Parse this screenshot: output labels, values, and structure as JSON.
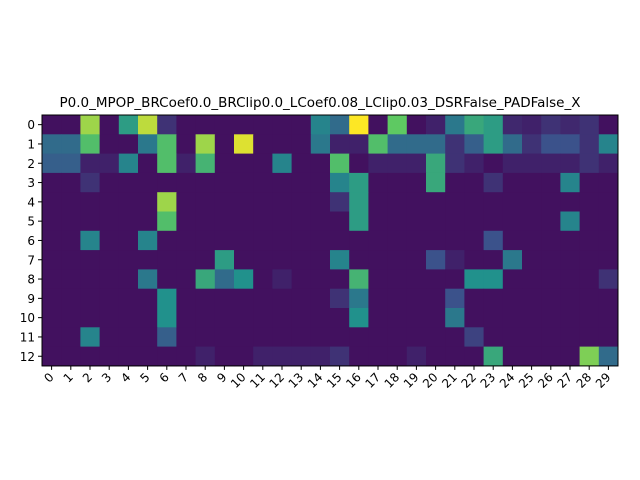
{
  "chart_data": {
    "type": "heatmap",
    "title": "P0.0_MPOP_BRCoef0.0_BRClip0.0_LCoef0.08_LClip0.03_DSRFalse_PADFalse_X",
    "colormap": "viridis",
    "vmin": 0,
    "vmax": 1,
    "x_ticks": [
      "0",
      "1",
      "2",
      "3",
      "4",
      "5",
      "6",
      "7",
      "8",
      "9",
      "10",
      "11",
      "12",
      "13",
      "14",
      "15",
      "16",
      "17",
      "18",
      "19",
      "20",
      "21",
      "22",
      "23",
      "24",
      "25",
      "26",
      "27",
      "28",
      "29"
    ],
    "y_ticks": [
      "0",
      "1",
      "2",
      "3",
      "4",
      "5",
      "6",
      "7",
      "8",
      "9",
      "10",
      "11",
      "12"
    ],
    "values": [
      [
        0.05,
        0.05,
        0.85,
        0.05,
        0.55,
        0.9,
        0.15,
        0.05,
        0.05,
        0.05,
        0.05,
        0.05,
        0.05,
        0.05,
        0.45,
        0.35,
        1.0,
        0.05,
        0.75,
        0.05,
        0.1,
        0.4,
        0.6,
        0.55,
        0.12,
        0.1,
        0.15,
        0.12,
        0.15,
        0.05
      ],
      [
        0.35,
        0.35,
        0.7,
        0.05,
        0.05,
        0.4,
        0.7,
        0.05,
        0.85,
        0.05,
        0.95,
        0.05,
        0.05,
        0.05,
        0.4,
        0.1,
        0.1,
        0.7,
        0.35,
        0.35,
        0.35,
        0.15,
        0.3,
        0.55,
        0.35,
        0.15,
        0.25,
        0.25,
        0.15,
        0.45
      ],
      [
        0.3,
        0.3,
        0.1,
        0.1,
        0.45,
        0.05,
        0.7,
        0.1,
        0.65,
        0.05,
        0.05,
        0.05,
        0.45,
        0.05,
        0.05,
        0.7,
        0.05,
        0.1,
        0.1,
        0.1,
        0.6,
        0.15,
        0.1,
        0.05,
        0.1,
        0.1,
        0.1,
        0.1,
        0.15,
        0.1
      ],
      [
        0.05,
        0.05,
        0.15,
        0.05,
        0.05,
        0.05,
        0.05,
        0.05,
        0.05,
        0.05,
        0.05,
        0.05,
        0.05,
        0.05,
        0.05,
        0.45,
        0.55,
        0.05,
        0.05,
        0.05,
        0.6,
        0.05,
        0.05,
        0.15,
        0.05,
        0.05,
        0.05,
        0.45,
        0.05,
        0.05
      ],
      [
        0.05,
        0.05,
        0.05,
        0.05,
        0.05,
        0.05,
        0.85,
        0.05,
        0.05,
        0.05,
        0.05,
        0.05,
        0.05,
        0.05,
        0.05,
        0.15,
        0.55,
        0.05,
        0.05,
        0.05,
        0.05,
        0.05,
        0.05,
        0.05,
        0.05,
        0.05,
        0.05,
        0.05,
        0.05,
        0.05
      ],
      [
        0.05,
        0.05,
        0.05,
        0.05,
        0.05,
        0.05,
        0.7,
        0.05,
        0.05,
        0.05,
        0.05,
        0.05,
        0.05,
        0.05,
        0.05,
        0.05,
        0.55,
        0.05,
        0.05,
        0.05,
        0.05,
        0.05,
        0.05,
        0.05,
        0.05,
        0.05,
        0.05,
        0.45,
        0.05,
        0.05
      ],
      [
        0.05,
        0.05,
        0.45,
        0.05,
        0.05,
        0.45,
        0.05,
        0.05,
        0.05,
        0.05,
        0.05,
        0.05,
        0.05,
        0.05,
        0.05,
        0.05,
        0.05,
        0.05,
        0.05,
        0.05,
        0.05,
        0.05,
        0.05,
        0.25,
        0.05,
        0.05,
        0.05,
        0.05,
        0.05,
        0.05
      ],
      [
        0.05,
        0.05,
        0.05,
        0.05,
        0.05,
        0.05,
        0.05,
        0.05,
        0.05,
        0.55,
        0.05,
        0.05,
        0.05,
        0.05,
        0.05,
        0.45,
        0.05,
        0.05,
        0.05,
        0.05,
        0.25,
        0.1,
        0.05,
        0.05,
        0.4,
        0.05,
        0.05,
        0.05,
        0.05,
        0.05
      ],
      [
        0.05,
        0.05,
        0.05,
        0.05,
        0.05,
        0.4,
        0.05,
        0.05,
        0.6,
        0.35,
        0.5,
        0.05,
        0.1,
        0.05,
        0.05,
        0.05,
        0.65,
        0.05,
        0.05,
        0.05,
        0.05,
        0.05,
        0.5,
        0.5,
        0.05,
        0.05,
        0.05,
        0.05,
        0.05,
        0.15
      ],
      [
        0.05,
        0.05,
        0.05,
        0.05,
        0.05,
        0.05,
        0.5,
        0.05,
        0.05,
        0.05,
        0.05,
        0.05,
        0.05,
        0.05,
        0.05,
        0.15,
        0.4,
        0.05,
        0.05,
        0.05,
        0.05,
        0.25,
        0.05,
        0.05,
        0.05,
        0.05,
        0.05,
        0.05,
        0.05,
        0.05
      ],
      [
        0.05,
        0.05,
        0.05,
        0.05,
        0.05,
        0.05,
        0.5,
        0.05,
        0.05,
        0.05,
        0.05,
        0.05,
        0.05,
        0.05,
        0.05,
        0.05,
        0.5,
        0.05,
        0.05,
        0.05,
        0.05,
        0.4,
        0.05,
        0.05,
        0.05,
        0.05,
        0.05,
        0.05,
        0.05,
        0.05
      ],
      [
        0.05,
        0.05,
        0.45,
        0.05,
        0.05,
        0.05,
        0.3,
        0.05,
        0.05,
        0.05,
        0.05,
        0.05,
        0.05,
        0.05,
        0.05,
        0.05,
        0.05,
        0.05,
        0.05,
        0.05,
        0.05,
        0.05,
        0.2,
        0.05,
        0.05,
        0.05,
        0.05,
        0.05,
        0.05,
        0.05
      ],
      [
        0.05,
        0.05,
        0.05,
        0.05,
        0.05,
        0.05,
        0.05,
        0.05,
        0.1,
        0.05,
        0.05,
        0.1,
        0.1,
        0.1,
        0.1,
        0.15,
        0.05,
        0.05,
        0.05,
        0.1,
        0.05,
        0.05,
        0.05,
        0.6,
        0.05,
        0.05,
        0.05,
        0.05,
        0.8,
        0.35
      ]
    ]
  }
}
